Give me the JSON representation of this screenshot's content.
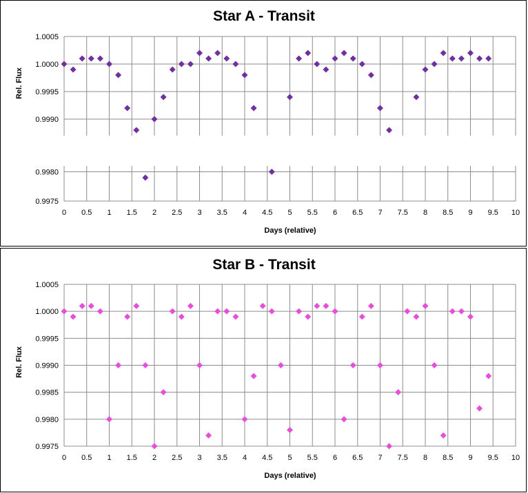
{
  "chart_data": [
    {
      "type": "scatter",
      "title": "Star A - Transit",
      "xlabel": "Days (relative)",
      "ylabel": "Rel. Flux",
      "xlim": [
        0,
        10
      ],
      "x_ticks": [
        "0",
        "0.5",
        "1",
        "1.5",
        "2",
        "2.5",
        "3",
        "3.5",
        "4",
        "4.5",
        "5",
        "5.5",
        "6",
        "6.5",
        "7",
        "7.5",
        "8",
        "8.5",
        "9",
        "9.5",
        "10"
      ],
      "broken_axis": true,
      "upper_ylim": [
        0.9987,
        1.0005
      ],
      "upper_y_ticks": [
        "1.0005",
        "1.0000",
        "0.9995",
        "0.9990"
      ],
      "lower_ylim": [
        0.9975,
        0.9982
      ],
      "lower_y_ticks": [
        "0.9980",
        "0.9975"
      ],
      "grid": true,
      "marker": "diamond",
      "color": "#7030A0",
      "series": [
        {
          "x": [
            0,
            0.2,
            0.4,
            0.6,
            0.8,
            1.0,
            1.2,
            1.4,
            1.6,
            1.8,
            2.0,
            2.2,
            2.4,
            2.6,
            2.8,
            3.0,
            3.2,
            3.4,
            3.6,
            3.8,
            4.0,
            4.2,
            4.6,
            5.0,
            5.2,
            5.4,
            5.6,
            5.8,
            6.0,
            6.2,
            6.4,
            6.6,
            6.8,
            7.0,
            7.2,
            7.8,
            8.0,
            8.2,
            8.4,
            8.6,
            8.8,
            9.0,
            9.2,
            9.4
          ],
          "y": [
            1.0,
            0.9999,
            1.0001,
            1.0001,
            1.0001,
            1.0,
            0.9998,
            0.9992,
            0.9988,
            0.9979,
            0.999,
            0.9994,
            0.9999,
            1.0,
            1.0,
            1.0002,
            1.0001,
            1.0002,
            1.0001,
            1.0,
            0.9998,
            0.9992,
            0.998,
            0.9994,
            1.0001,
            1.0002,
            1.0,
            0.9999,
            1.0001,
            1.0002,
            1.0001,
            1.0,
            0.9998,
            0.9992,
            0.9988,
            0.9994,
            0.9999,
            1.0,
            1.0002,
            1.0001,
            1.0001,
            1.0002,
            1.0001,
            1.0001
          ]
        }
      ]
    },
    {
      "type": "scatter",
      "title": "Star B - Transit",
      "xlabel": "Days (relative)",
      "ylabel": "Rel. Flux",
      "xlim": [
        0,
        10
      ],
      "x_ticks": [
        "0",
        "0.5",
        "1",
        "1.5",
        "2",
        "2.5",
        "3",
        "3.5",
        "4",
        "4.5",
        "5",
        "5.5",
        "6",
        "6.5",
        "7",
        "7.5",
        "8",
        "8.5",
        "9",
        "9.5",
        "10"
      ],
      "ylim": [
        0.9975,
        1.0005
      ],
      "y_ticks": [
        "1.0005",
        "1.0000",
        "0.9995",
        "0.9990",
        "0.9985",
        "0.9980",
        "0.9975"
      ],
      "grid": true,
      "marker": "diamond",
      "color": "#E64FD9",
      "series": [
        {
          "x": [
            0,
            0.2,
            0.4,
            0.6,
            0.8,
            1.0,
            1.2,
            1.4,
            1.6,
            1.8,
            2.0,
            2.2,
            2.4,
            2.6,
            2.8,
            3.0,
            3.2,
            3.4,
            3.6,
            3.8,
            4.0,
            4.2,
            4.4,
            4.6,
            4.8,
            5.0,
            5.2,
            5.4,
            5.6,
            5.8,
            6.0,
            6.2,
            6.4,
            6.6,
            6.8,
            7.0,
            7.2,
            7.4,
            7.6,
            7.8,
            8.0,
            8.2,
            8.4,
            8.6,
            8.8,
            9.0,
            9.2,
            9.4
          ],
          "y": [
            1.0,
            0.9999,
            1.0001,
            1.0001,
            1.0,
            0.998,
            0.999,
            0.9999,
            1.0001,
            0.999,
            0.9975,
            0.9985,
            1.0,
            0.9999,
            1.0001,
            0.999,
            0.9977,
            1.0,
            1.0,
            0.9999,
            0.998,
            0.9988,
            1.0001,
            1.0,
            0.999,
            0.9978,
            1.0,
            0.9999,
            1.0001,
            1.0001,
            1.0,
            0.998,
            0.999,
            0.9999,
            1.0001,
            0.999,
            0.9975,
            0.9985,
            1.0,
            0.9999,
            1.0001,
            0.999,
            0.9977,
            1.0,
            1.0,
            0.9999,
            0.9982,
            0.9988
          ]
        }
      ]
    }
  ]
}
